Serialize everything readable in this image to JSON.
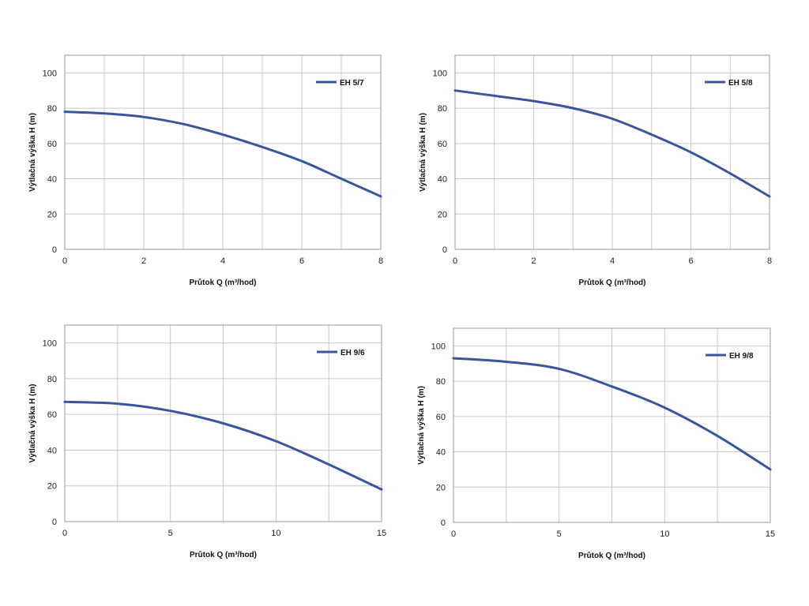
{
  "colors": {
    "series": "#3b559a",
    "grid": "#c8c8c8",
    "frame": "#9a9a9a"
  },
  "chart_data": [
    {
      "type": "line",
      "x": [
        0,
        1,
        2,
        3,
        4,
        5,
        6,
        7,
        8
      ],
      "series": [
        {
          "name": "EH 5/7",
          "values": [
            78,
            77,
            75,
            71,
            65,
            58,
            50,
            40,
            30
          ]
        }
      ],
      "xlabel": "Průtok Q (m³/hod)",
      "ylabel": "Výtlačná výška H (m)",
      "xticks": [
        0,
        2,
        4,
        6,
        8
      ],
      "yticks": [
        0,
        20,
        40,
        60,
        80,
        100
      ],
      "xlim": [
        0,
        8
      ],
      "ylim": [
        0,
        110
      ],
      "grid": true,
      "legend": "top-right"
    },
    {
      "type": "line",
      "x": [
        0,
        1,
        2,
        3,
        4,
        5,
        6,
        7,
        8
      ],
      "series": [
        {
          "name": "EH 5/8",
          "values": [
            90,
            87,
            84,
            80,
            74,
            65,
            55,
            43,
            30
          ]
        }
      ],
      "xlabel": "Průtok Q (m³/hod)",
      "ylabel": "Výtlačná výška H (m)",
      "xticks": [
        0,
        2,
        4,
        6,
        8
      ],
      "yticks": [
        0,
        20,
        40,
        60,
        80,
        100
      ],
      "xlim": [
        0,
        8
      ],
      "ylim": [
        0,
        110
      ],
      "grid": true,
      "legend": "top-right"
    },
    {
      "type": "line",
      "x": [
        0,
        2.5,
        5,
        7.5,
        10,
        12.5,
        15
      ],
      "series": [
        {
          "name": "EH 9/6",
          "values": [
            67,
            66,
            62,
            55,
            45,
            32,
            18
          ]
        }
      ],
      "xlabel": "Průtok Q (m³/hod)",
      "ylabel": "Výtlačná výška H (m)",
      "xticks": [
        0,
        5,
        10,
        15
      ],
      "yticks": [
        0,
        20,
        40,
        60,
        80,
        100
      ],
      "xlim": [
        0,
        15
      ],
      "ylim": [
        0,
        110
      ],
      "grid": true,
      "legend": "top-right"
    },
    {
      "type": "line",
      "x": [
        0,
        2.5,
        5,
        7.5,
        10,
        12.5,
        15
      ],
      "series": [
        {
          "name": "EH 9/8",
          "values": [
            93,
            91,
            87,
            77,
            65,
            49,
            30
          ]
        }
      ],
      "xlabel": "Průtok Q (m³/hod)",
      "ylabel": "Výtlačná výška H (m)",
      "xticks": [
        0,
        5,
        10,
        15
      ],
      "yticks": [
        0,
        20,
        40,
        60,
        80,
        100
      ],
      "xlim": [
        0,
        15
      ],
      "ylim": [
        0,
        110
      ],
      "grid": true,
      "legend": "top-right"
    }
  ]
}
